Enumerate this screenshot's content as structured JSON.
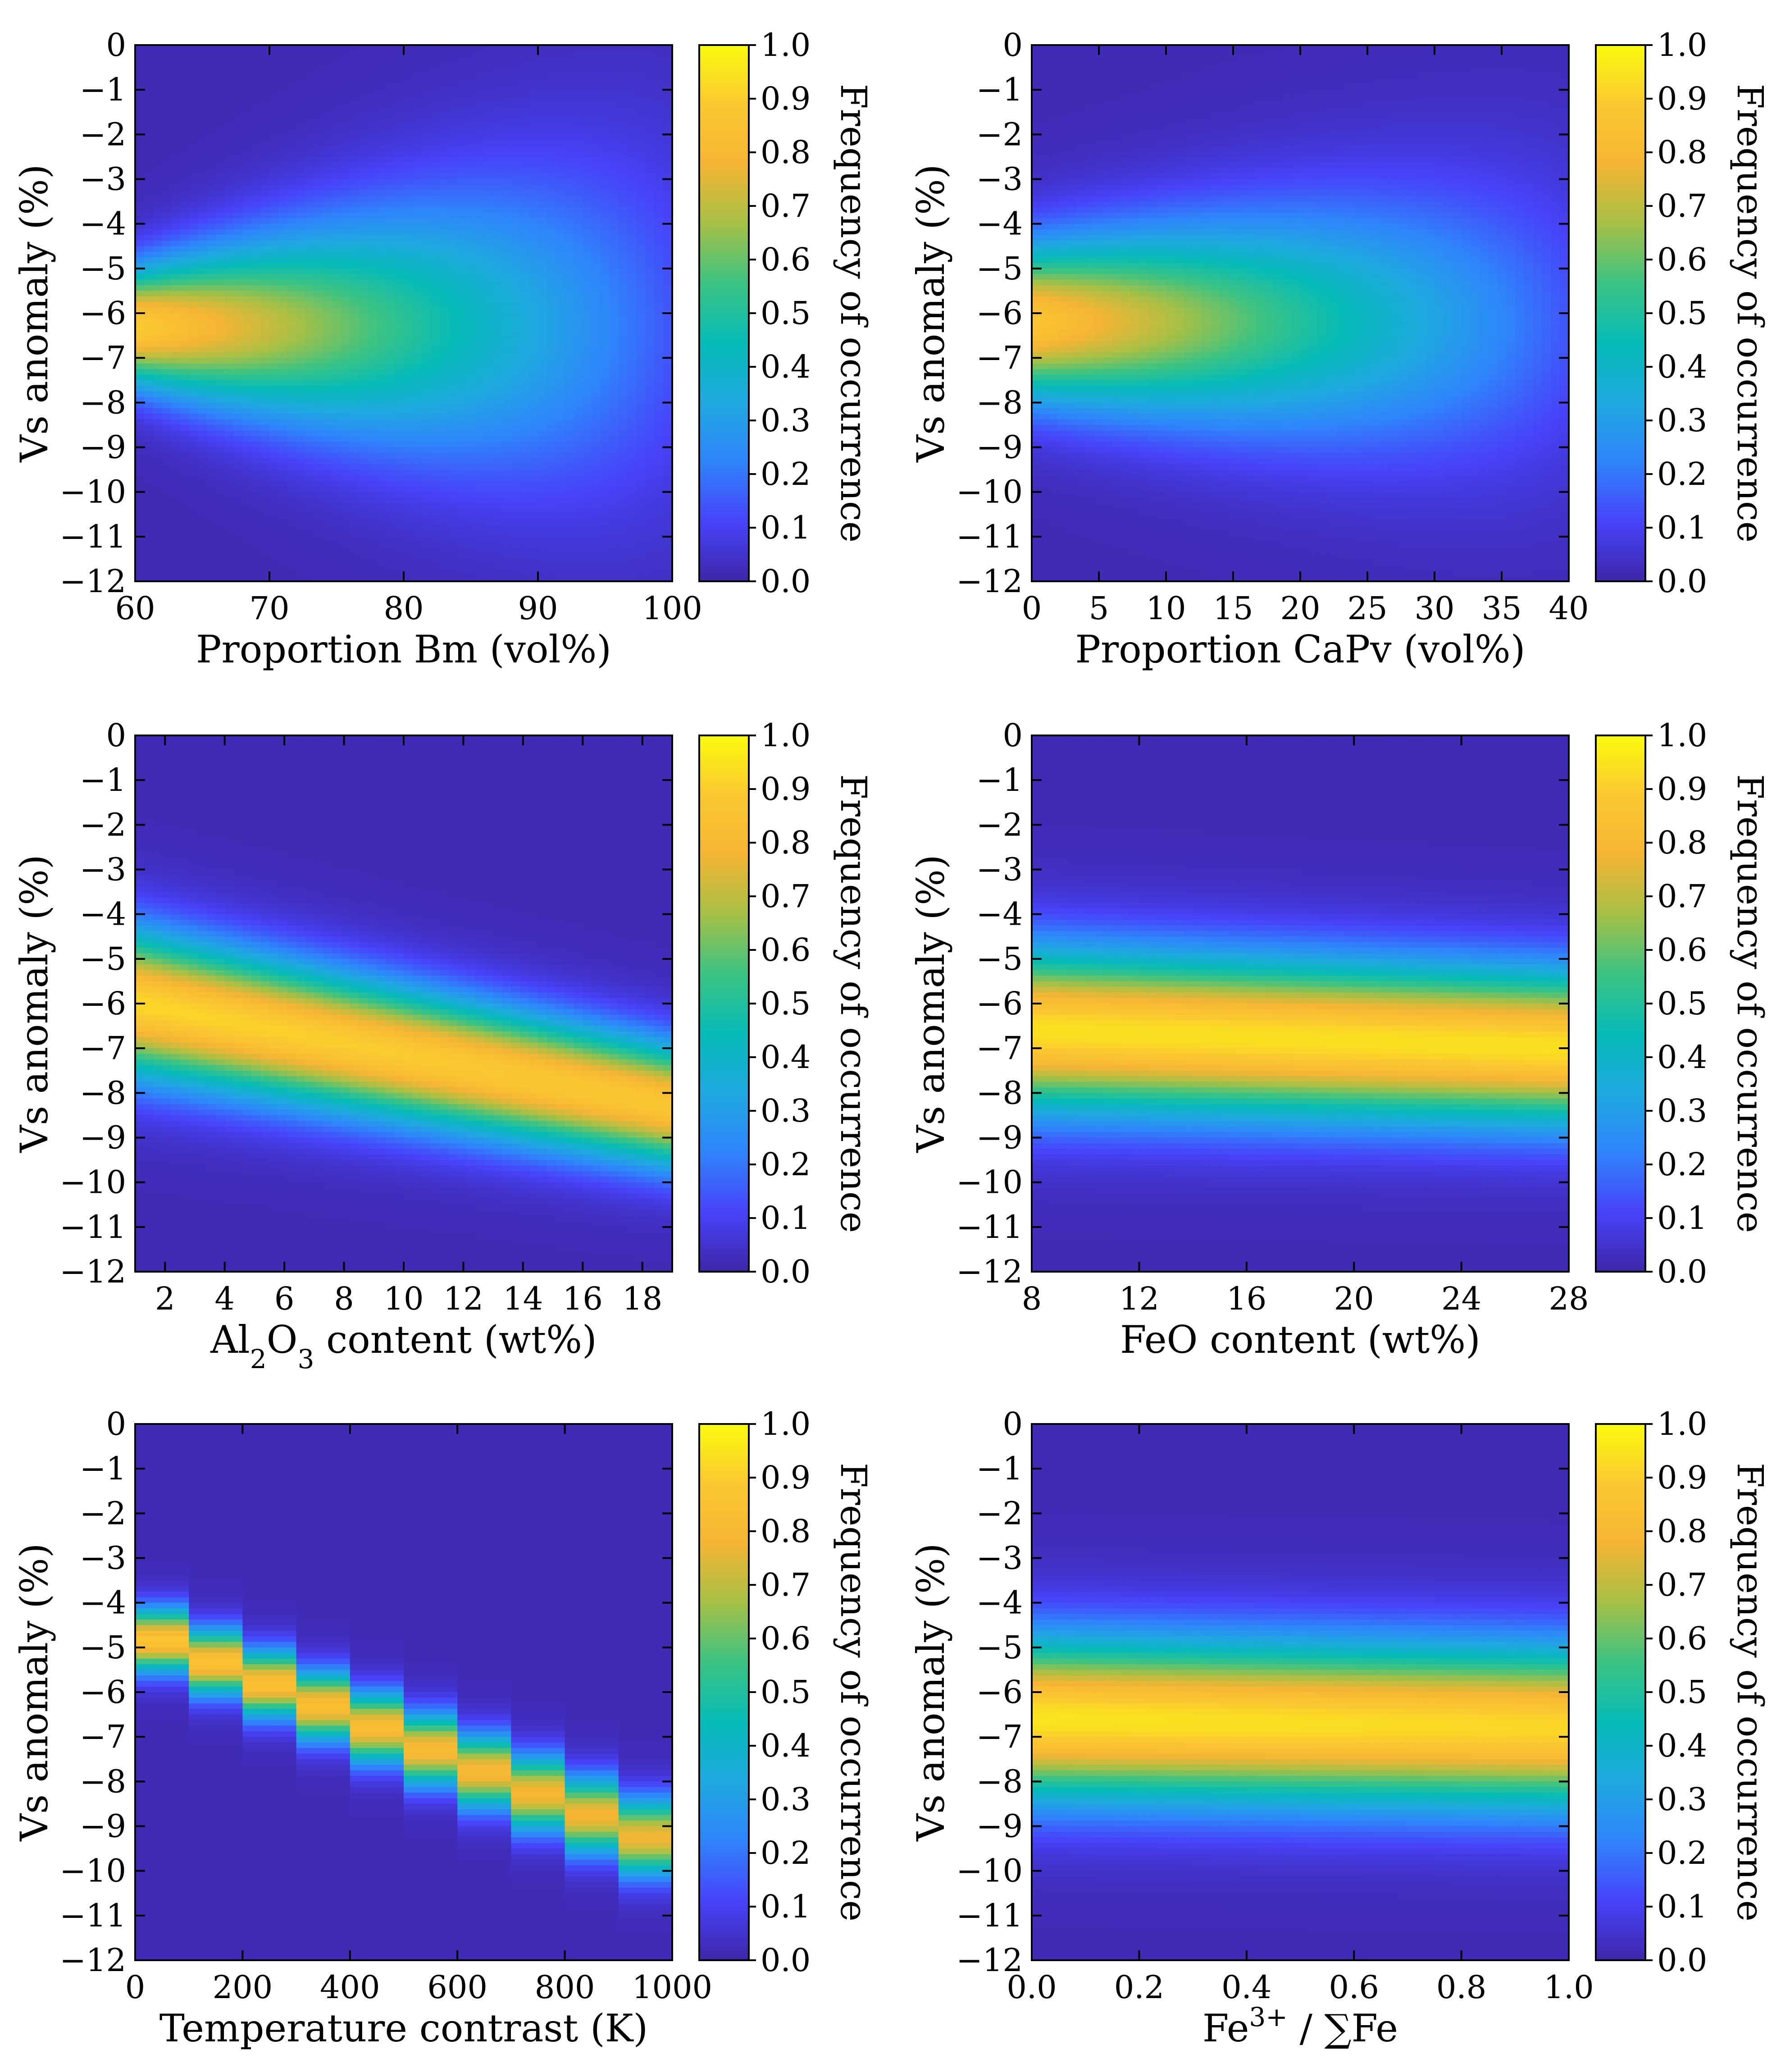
{
  "colorbar": {
    "label": "Frequency of occurrence",
    "ticks": [
      "0.0",
      "0.1",
      "0.2",
      "0.3",
      "0.4",
      "0.5",
      "0.6",
      "0.7",
      "0.8",
      "0.9",
      "1.0"
    ],
    "colormap": [
      "#3e26a8",
      "#4743f9",
      "#2f84fb",
      "#1fa9e0",
      "#06bbb7",
      "#3cc383",
      "#a6c046",
      "#f5b534",
      "#fbc831",
      "#f9fb0e"
    ]
  },
  "ylabel": "Vs anomaly (%)",
  "yticks": [
    "0",
    "−1",
    "−2",
    "−3",
    "−4",
    "−5",
    "−6",
    "−7",
    "−8",
    "−9",
    "−10",
    "−11",
    "−12"
  ],
  "chart_data": [
    {
      "type": "heatmap",
      "xlabel": "Proportion Bm (vol%)",
      "ylabel": "Vs anomaly (%)",
      "xlim": [
        60,
        100
      ],
      "ylim": [
        -12,
        0
      ],
      "xticks": [
        "60",
        "70",
        "80",
        "90",
        "100"
      ],
      "ridge": {
        "y_center_at_xmin": -6.3,
        "y_center_at_xmax": -6.3,
        "width_at_xmin": 1.5,
        "width_at_xmax": 5.0,
        "peak_at_xmin": 0.88,
        "peak_at_xmax": 0.12
      }
    },
    {
      "type": "heatmap",
      "xlabel": "Proportion CaPv (vol%)",
      "ylabel": "Vs anomaly (%)",
      "xlim": [
        0,
        40
      ],
      "ylim": [
        -12,
        0
      ],
      "xticks": [
        "0",
        "5",
        "10",
        "15",
        "20",
        "25",
        "30",
        "35",
        "40"
      ],
      "ridge": {
        "y_center_at_xmin": -6.2,
        "y_center_at_xmax": -6.2,
        "width_at_xmin": 2.0,
        "width_at_xmax": 4.0,
        "peak_at_xmin": 0.85,
        "peak_at_xmax": 0.12
      }
    },
    {
      "type": "heatmap",
      "xlabel_main": "Al",
      "xlabel_sub1": "2",
      "xlabel_mid": "O",
      "xlabel_sub2": "3",
      "xlabel_rest": " content (wt%)",
      "ylabel": "Vs anomaly (%)",
      "xlim": [
        1,
        19
      ],
      "ylim": [
        -12,
        0
      ],
      "xticks": [
        "2",
        "4",
        "6",
        "8",
        "10",
        "12",
        "14",
        "16",
        "18"
      ],
      "ridge": {
        "y_center_at_xmin": -6.0,
        "y_center_at_xmax": -8.3,
        "width_at_xmin": 1.9,
        "width_at_xmax": 1.6,
        "peak_at_xmin": 0.9,
        "peak_at_xmax": 0.85
      }
    },
    {
      "type": "heatmap",
      "xlabel": "FeO content (wt%)",
      "ylabel": "Vs anomaly (%)",
      "xlim": [
        8,
        28
      ],
      "ylim": [
        -12,
        0
      ],
      "xticks": [
        "8",
        "12",
        "16",
        "20",
        "24",
        "28"
      ],
      "ridge": {
        "y_center_at_xmin": -6.6,
        "y_center_at_xmax": -7.0,
        "width_at_xmin": 2.1,
        "width_at_xmax": 2.0,
        "peak_at_xmin": 0.92,
        "peak_at_xmax": 0.92
      }
    },
    {
      "type": "heatmap",
      "xlabel": "Temperature contrast (K)",
      "ylabel": "Vs anomaly (%)",
      "xlim": [
        0,
        1000
      ],
      "ylim": [
        -12,
        0
      ],
      "xticks": [
        "0",
        "200",
        "400",
        "600",
        "800",
        "1000"
      ],
      "ridge": {
        "y_center_at_xmin": -4.6,
        "y_center_at_xmax": -9.5,
        "width_at_xmin": 0.8,
        "width_at_xmax": 1.0,
        "peak_at_xmin": 0.85,
        "peak_at_xmax": 0.75
      },
      "stepped_columns": 10
    },
    {
      "type": "heatmap",
      "xlabel_main": "Fe",
      "xlabel_sup": "3+",
      "xlabel_rest": " / ∑Fe",
      "ylabel": "Vs anomaly (%)",
      "xlim": [
        0,
        1
      ],
      "ylim": [
        -12,
        0
      ],
      "xticks": [
        "0.0",
        "0.2",
        "0.4",
        "0.6",
        "0.8",
        "1.0"
      ],
      "ridge": {
        "y_center_at_xmin": -6.6,
        "y_center_at_xmax": -6.8,
        "width_at_xmin": 2.1,
        "width_at_xmax": 2.1,
        "peak_at_xmin": 0.93,
        "peak_at_xmax": 0.9
      }
    }
  ]
}
